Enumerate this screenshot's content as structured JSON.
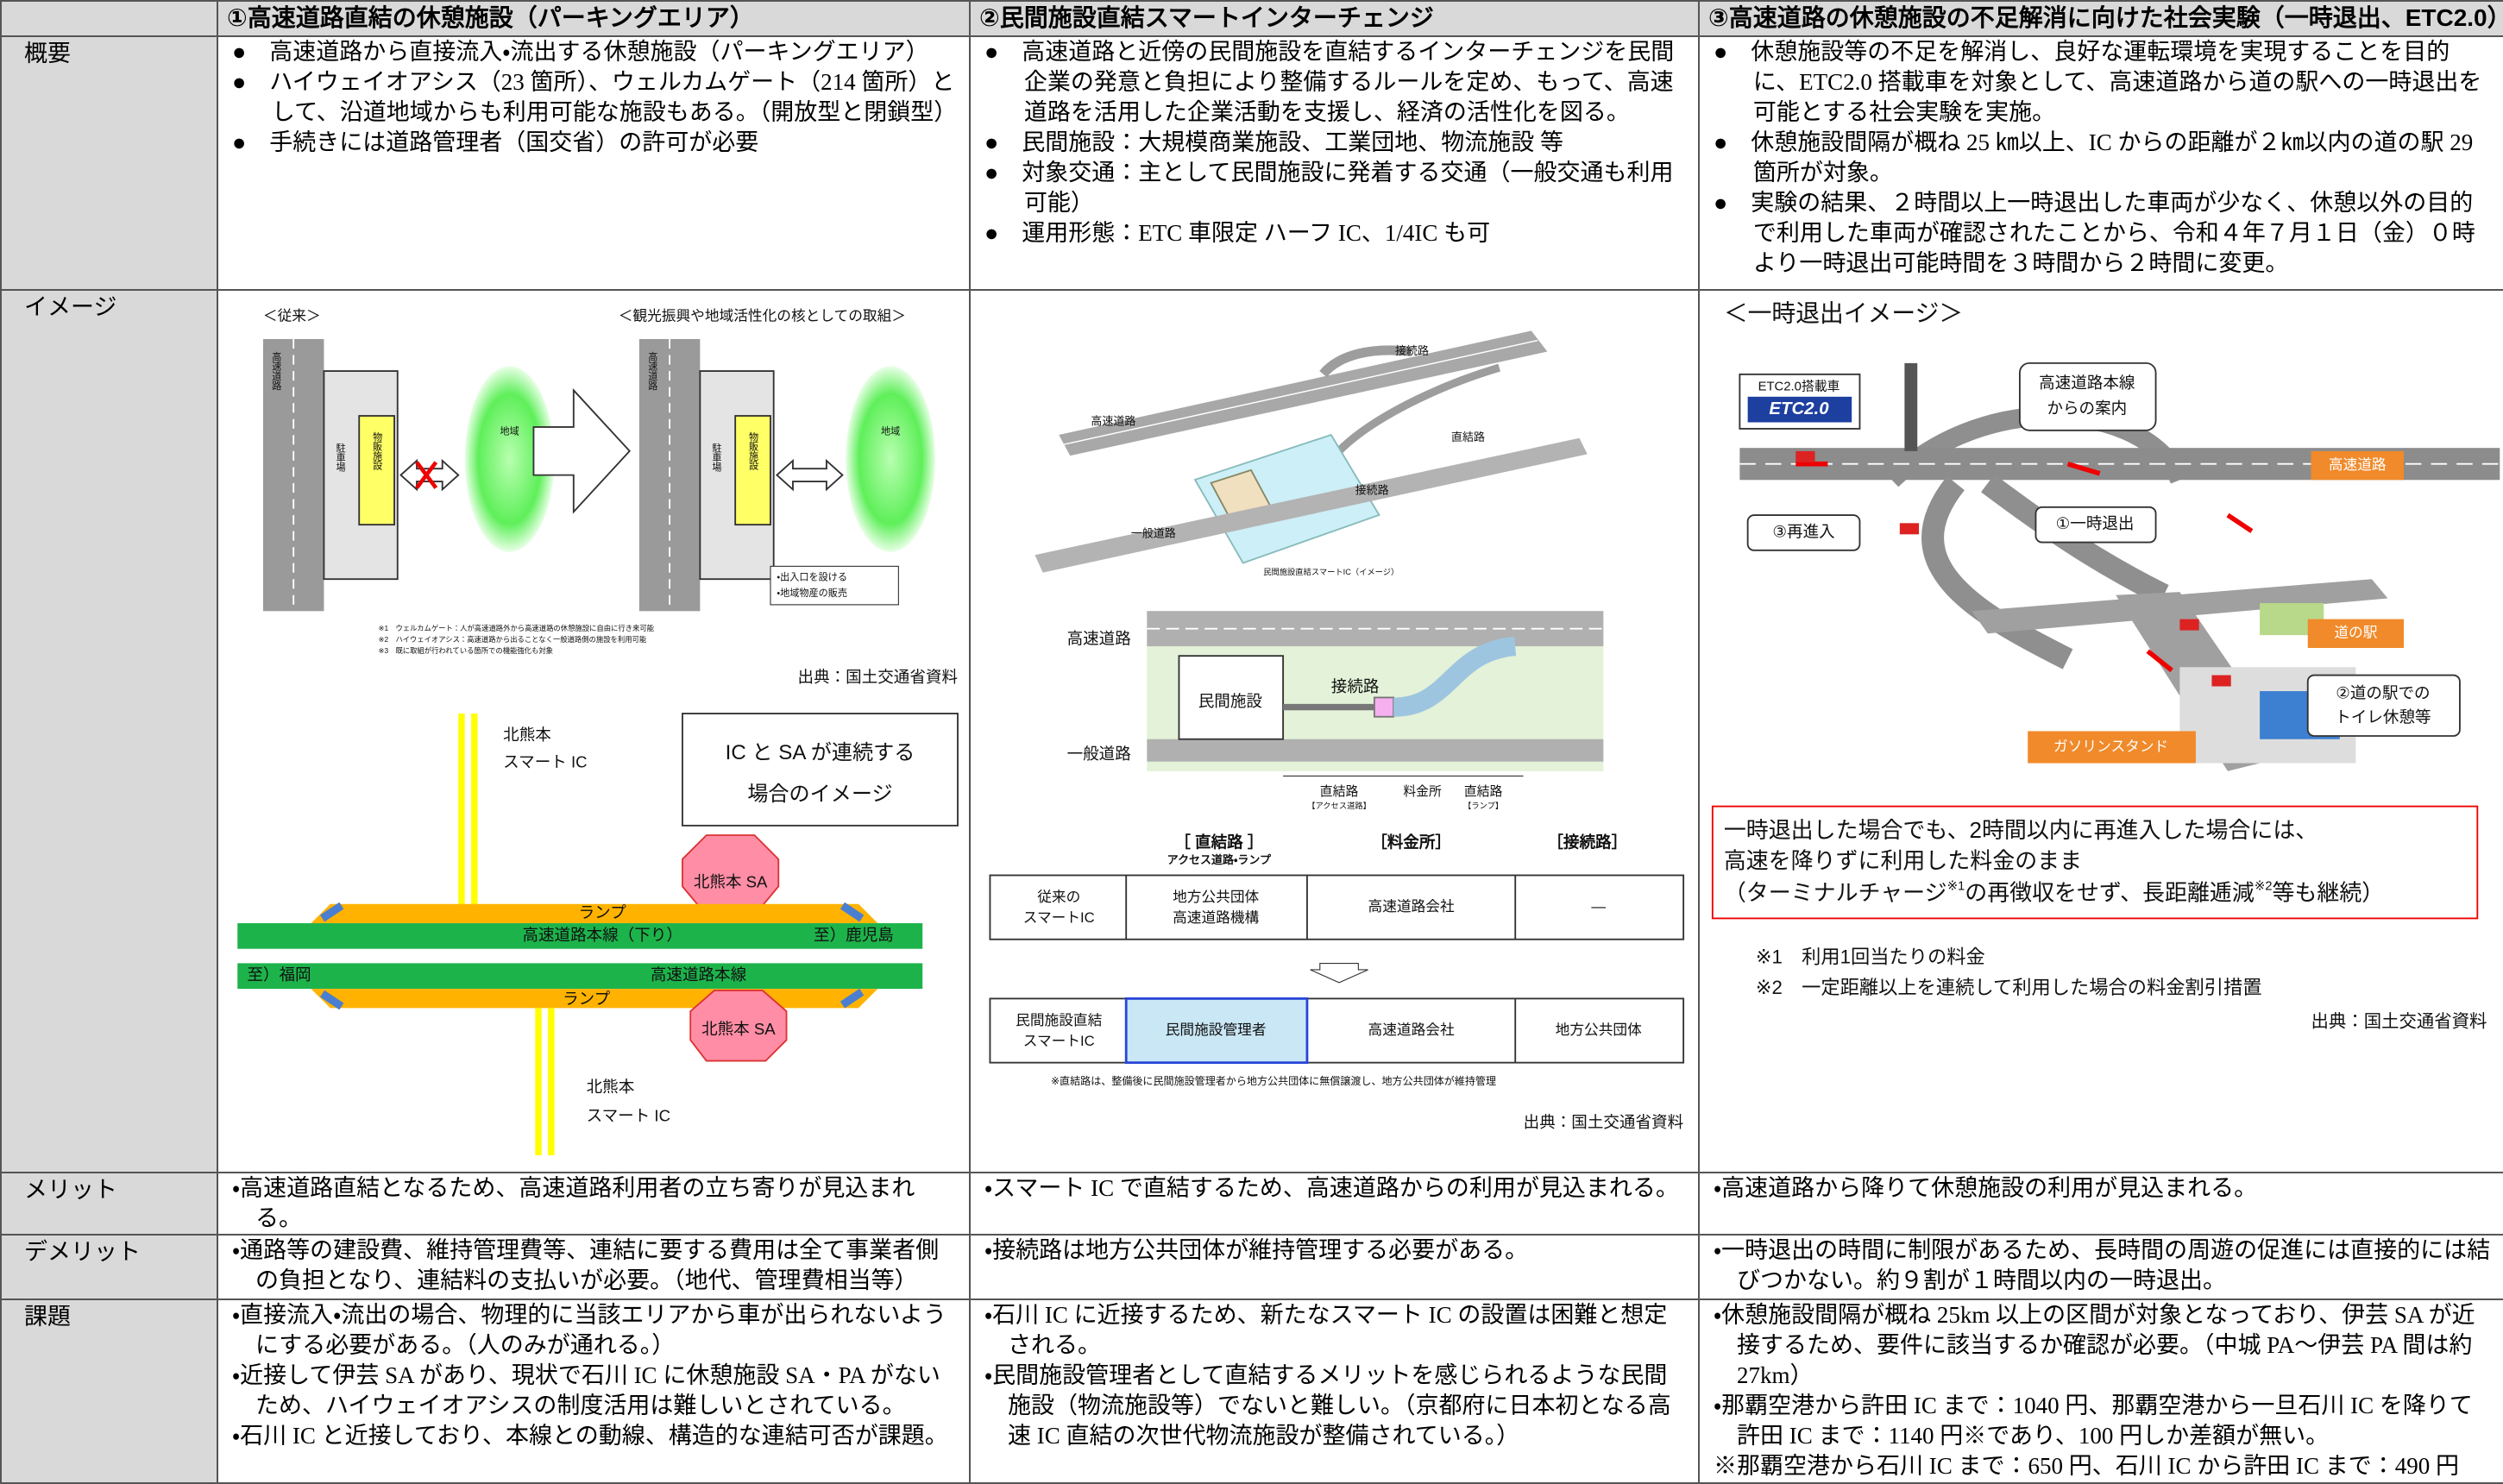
{
  "header": [
    "①高速道路直結の休憩施設（パーキングエリア）",
    "②民間施設直結スマートインターチェンジ",
    "③高速道路の休憩施設の不足解消に向けた社会実験（一時退出、ETC2.0）"
  ],
  "rows": [
    {
      "label": "概要",
      "cells": [
        [
          "●　高速道路から直接流入・流出する休憩施設（パーキングエリア）",
          "●　ハイウェイオアシス（23 箇所）、ウェルカムゲート（214 箇所）として、沿道地域からも利用可能な施設もある。（開放型と閉鎖型）",
          "●　手続きには道路管理者（国交省）の許可が必要"
        ],
        [
          "●　高速道路と近傍の民間施設を直結するインターチェンジを民間企業の発意と負担により整備するルールを定め、もって、高速道路を活用した企業活動を支援し、経済の活性化を図る。",
          "●　民間施設：大規模商業施設、工業団地、物流施設 等",
          "●　対象交通：主として民間施設に発着する交通（一般交通も利用可能）",
          "●　運用形態：ETC 車限定 ハーフ IC、1/4IC も可"
        ],
        [
          "●　休憩施設等の不足を解消し、良好な運転環境を実現することを目的に、ETC2.0 搭載車を対象として、高速道路から道の駅への一時退出を可能とする社会実験を実施。",
          "●　休憩施設間隔が概ね 25 ㎞以上、IC からの距離が２㎞以内の道の駅 29 箇所が対象。",
          "●　実験の結果、２時間以上一時退出した車両が少なく、休憩以外の目的で利用した車両が確認されたことから、令和４年７月１日（金）０時より一時退出可能時間を３時間から２時間に変更。"
        ]
      ]
    },
    {
      "label": "イメージ"
    },
    {
      "label": "メリット",
      "cells": [
        [
          "・高速道路直結となるため、高速道路利用者の立ち寄りが見込まれる。"
        ],
        [
          "・スマート IC で直結するため、高速道路からの利用が見込まれる。"
        ],
        [
          "・高速道路から降りて休憩施設の利用が見込まれる。"
        ]
      ]
    },
    {
      "label": "デメリット",
      "cells": [
        [
          "・通路等の建設費、維持管理費等、連結に要する費用は全て事業者側の負担となり、連結料の支払いが必要。（地代、管理費相当等）"
        ],
        [
          "・接続路は地方公共団体が維持管理する必要がある。"
        ],
        [
          "・一時退出の時間に制限があるため、長時間の周遊の促進には直接的には結びつかない。約９割が１時間以内の一時退出。"
        ]
      ]
    },
    {
      "label": "課題",
      "cells": [
        [
          "・直接流入・流出の場合、物理的に当該エリアから車が出られないようにする必要がある。（人のみが通れる。）",
          "・近接して伊芸 SA があり、現状で石川 IC に休憩施設 SA・PA がないため、ハイウェイオアシスの制度活用は難しいとされている。",
          "・石川 IC と近接しており、本線との動線、構造的な連結可否が課題。"
        ],
        [
          "・石川 IC に近接するため、新たなスマート IC の設置は困難と想定される。",
          "・民間施設管理者として直結するメリットを感じられるような民間施設（物流施設等）でないと難しい。（京都府に日本初となる高速 IC 直結の次世代物流施設が整備されている。）"
        ],
        [
          "・休憩施設間隔が概ね 25km 以上の区間が対象となっており、伊芸 SA が近接するため、要件に該当するか確認が必要。（中城 PA～伊芸 PA 間は約 27km）",
          "・那覇空港から許田 IC まで：1040 円、那覇空港から一旦石川 IC を降りて許田 IC まで：1140 円※であり、100 円しか差額が無い。",
          "※那覇空港から石川 IC まで：650 円、石川 IC から許田 IC まで：490 円"
        ]
      ]
    }
  ],
  "images": {
    "parking": {
      "before": "＜従来＞",
      "after": "＜観光振興や地域活性化の核としての取組＞",
      "road": "高速道路",
      "parking_lot": "駐車場",
      "shop": "物販施設",
      "area": "地域",
      "notes": [
        "・出入口を設ける",
        "・地域物産の販売"
      ],
      "footnotes": [
        "※1　ウェルカムゲート：人が高速道路外から高速道路の休憩施設に自由に行き来可能",
        "※2　ハイウェイオアシス：高速道路から出ることなく一般道路側の施設を利用可能",
        "※3　既に取組が行われている箇所での機能強化も対象"
      ],
      "source": "出典：国土交通省資料",
      "ic_top": [
        "北熊本",
        "スマート IC"
      ],
      "caption": [
        "IC と SA が連続する",
        "場合のイメージ"
      ],
      "sa_top": "北熊本 SA",
      "ramp_top": "ランプ",
      "main_down": "高速道路本線（下り）",
      "to_kagoshima": "至）鹿児島",
      "to_fukuoka": "至）福岡",
      "main_up": "高速道路本線",
      "ramp_bottom": "ランプ",
      "sa_bottom": "北熊本 SA",
      "ic_bottom": [
        "北熊本",
        "スマート IC"
      ]
    },
    "smart_ic": {
      "top_labels": [
        "高速道路",
        "接続路",
        "直結路",
        "接続路",
        "一般道路"
      ],
      "top_caption": "民間施設直結スマートIC（イメージ）",
      "highway": "高速道路",
      "facility": "民間施設",
      "connector": "接続路",
      "local_road": "一般道路",
      "dims": [
        "直結路",
        "【アクセス道路】",
        "料金所",
        "直結路",
        "【ランプ】"
      ],
      "heads": [
        "［ 直結路 ］",
        "アクセス道路・ランプ",
        "［料金所］",
        "［接続路］"
      ],
      "table": [
        [
          [
            "従来の",
            "スマートIC"
          ],
          [
            "地方公共団体",
            "高速道路機構"
          ],
          "高速道路会社",
          "―"
        ],
        [
          [
            "民間施設直結",
            "スマートIC"
          ],
          "民間施設管理者",
          "高速道路会社",
          "地方公共団体"
        ]
      ],
      "note": "※直結路は、整備後に民間施設管理者から地方公共団体に無償譲渡し、地方公共団体が維持管理",
      "source": "出典：国土交通省資料"
    },
    "temporary_exit": {
      "title": "＜一時退出イメージ＞",
      "etc_car": "ETC2.0搭載車",
      "etc_logo": "ETC2.0",
      "guide": [
        "高速道路本線",
        "からの案内"
      ],
      "highway": "高速道路",
      "reenter": "③再進入",
      "exit": "①一時退出",
      "station": "道の駅",
      "rest": [
        "②道の駅での",
        "トイレ休憩等"
      ],
      "gas": "ガソリンスタンド",
      "box": [
        "一時退出した場合でも、2時間以内に再進入した場合には、",
        "高速を降りずに利用した料金のまま",
        [
          "（ターミナルチャージ",
          "※1",
          "の再徴収をせず、長距離逓減",
          "※2",
          "等も継続）"
        ]
      ],
      "notes": [
        "※1　利用1回当たりの料金",
        "※2　一定距離以上を連続して利用した場合の料金割引措置"
      ],
      "source": "出典：国土交通省資料"
    }
  }
}
